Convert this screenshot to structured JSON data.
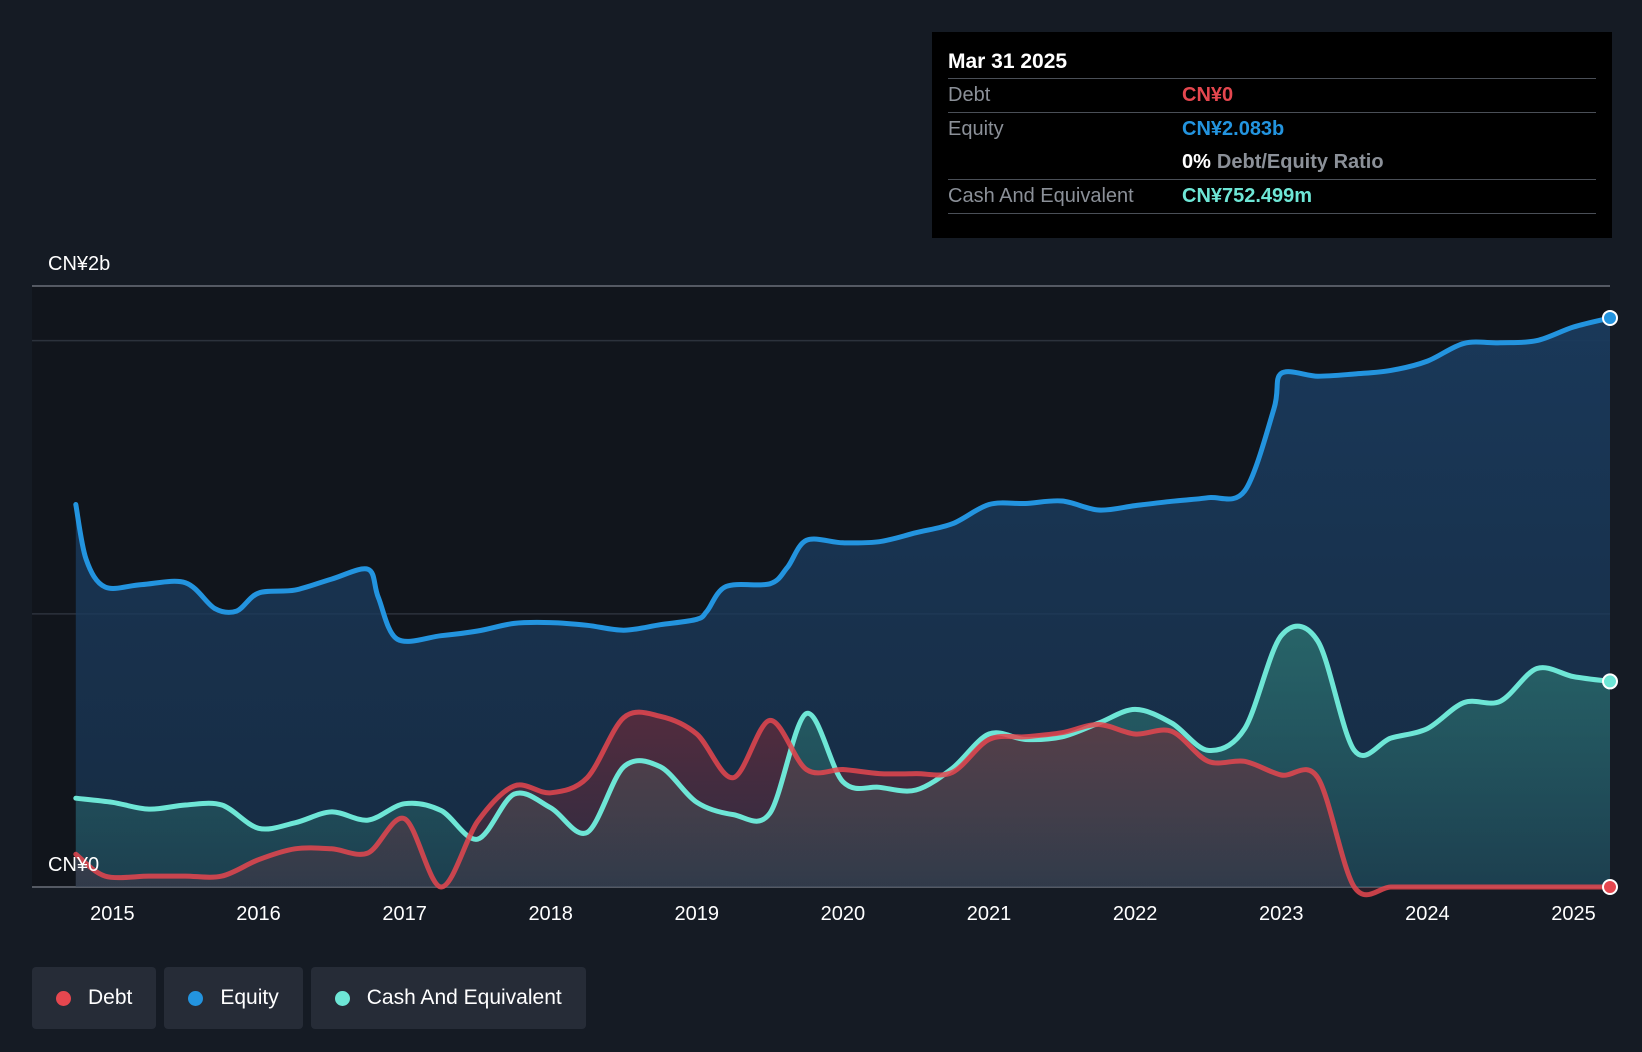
{
  "tooltip": {
    "date": "Mar 31 2025",
    "debt_label": "Debt",
    "debt_value": "CN¥0",
    "equity_label": "Equity",
    "equity_value": "CN¥2.083b",
    "ratio_value": "0%",
    "ratio_label": "Debt/Equity Ratio",
    "cash_label": "Cash And Equivalent",
    "cash_value": "CN¥752.499m"
  },
  "legend": [
    {
      "label": "Debt",
      "color": "#e5474f"
    },
    {
      "label": "Equity",
      "color": "#2394df"
    },
    {
      "label": "Cash And Equivalent",
      "color": "#6ee6d6"
    }
  ],
  "colors": {
    "debt": "#e5474f",
    "equity": "#2394df",
    "cash": "#6ee6d6",
    "background": "#151b24"
  },
  "chart_data": {
    "type": "area",
    "title": "",
    "xlabel": "",
    "ylabel": "",
    "y_unit": "CN¥ billion",
    "xlim": [
      2014.45,
      2025.25
    ],
    "ylim": [
      0,
      2.2
    ],
    "y_tick_labels": [
      {
        "value": 2.2,
        "label": "CN¥2b"
      },
      {
        "value": 0,
        "label": "CN¥0"
      }
    ],
    "x_ticks": [
      2015,
      2016,
      2017,
      2018,
      2019,
      2020,
      2021,
      2022,
      2023,
      2024,
      2025
    ],
    "grid": true,
    "legend_position": "bottom-left",
    "series": [
      {
        "name": "Equity",
        "x": [
          2014.75,
          2014.82,
          2014.95,
          2015.2,
          2015.5,
          2015.7,
          2015.85,
          2016.0,
          2016.25,
          2016.5,
          2016.75,
          2016.82,
          2016.95,
          2017.25,
          2017.5,
          2017.75,
          2018.0,
          2018.25,
          2018.5,
          2018.75,
          2019.0,
          2019.07,
          2019.2,
          2019.5,
          2019.62,
          2019.75,
          2020.0,
          2020.25,
          2020.5,
          2020.75,
          2021.0,
          2021.25,
          2021.5,
          2021.75,
          2022.0,
          2022.25,
          2022.5,
          2022.75,
          2022.95,
          2023.0,
          2023.25,
          2023.5,
          2023.75,
          2024.0,
          2024.25,
          2024.5,
          2024.75,
          2025.0,
          2025.25
        ],
        "values": [
          1.4,
          1.2,
          1.098,
          1.107,
          1.114,
          1.02,
          1.01,
          1.076,
          1.087,
          1.127,
          1.163,
          1.06,
          0.907,
          0.92,
          0.937,
          0.965,
          0.968,
          0.958,
          0.94,
          0.96,
          0.98,
          1.01,
          1.1,
          1.11,
          1.17,
          1.269,
          1.26,
          1.264,
          1.297,
          1.33,
          1.4,
          1.404,
          1.413,
          1.38,
          1.396,
          1.412,
          1.425,
          1.45,
          1.75,
          1.88,
          1.87,
          1.878,
          1.891,
          1.925,
          1.99,
          1.992,
          2.0,
          2.05,
          2.083
        ]
      },
      {
        "name": "Cash And Equivalent",
        "x": [
          2014.75,
          2015.0,
          2015.25,
          2015.5,
          2015.75,
          2016.0,
          2016.25,
          2016.5,
          2016.75,
          2017.0,
          2017.25,
          2017.5,
          2017.75,
          2018.0,
          2018.25,
          2018.5,
          2018.75,
          2019.0,
          2019.25,
          2019.5,
          2019.75,
          2020.0,
          2020.25,
          2020.5,
          2020.75,
          2021.0,
          2021.25,
          2021.5,
          2021.75,
          2022.0,
          2022.25,
          2022.5,
          2022.75,
          2023.0,
          2023.25,
          2023.5,
          2023.75,
          2024.0,
          2024.25,
          2024.5,
          2024.75,
          2025.0,
          2025.25
        ],
        "values": [
          0.325,
          0.31,
          0.285,
          0.3,
          0.3,
          0.215,
          0.235,
          0.275,
          0.245,
          0.305,
          0.28,
          0.175,
          0.34,
          0.29,
          0.2,
          0.44,
          0.44,
          0.31,
          0.265,
          0.27,
          0.635,
          0.385,
          0.365,
          0.355,
          0.435,
          0.56,
          0.54,
          0.55,
          0.6,
          0.65,
          0.6,
          0.5,
          0.58,
          0.92,
          0.9,
          0.5,
          0.545,
          0.58,
          0.675,
          0.68,
          0.8,
          0.77,
          0.7525
        ]
      },
      {
        "name": "Debt",
        "x": [
          2014.75,
          2014.95,
          2015.25,
          2015.5,
          2015.75,
          2016.0,
          2016.25,
          2016.5,
          2016.75,
          2017.0,
          2017.25,
          2017.5,
          2017.75,
          2018.0,
          2018.25,
          2018.5,
          2018.75,
          2019.0,
          2019.25,
          2019.5,
          2019.75,
          2020.0,
          2020.25,
          2020.5,
          2020.75,
          2021.0,
          2021.25,
          2021.5,
          2021.75,
          2022.0,
          2022.25,
          2022.5,
          2022.75,
          2023.0,
          2023.25,
          2023.5,
          2023.75,
          2024.0,
          2024.25,
          2024.5,
          2024.75,
          2025.0,
          2025.25
        ],
        "values": [
          0.12,
          0.04,
          0.04,
          0.04,
          0.04,
          0.1,
          0.14,
          0.14,
          0.125,
          0.25,
          0.0,
          0.24,
          0.37,
          0.345,
          0.4,
          0.62,
          0.625,
          0.56,
          0.4,
          0.61,
          0.43,
          0.43,
          0.415,
          0.415,
          0.42,
          0.54,
          0.55,
          0.565,
          0.595,
          0.56,
          0.57,
          0.46,
          0.46,
          0.41,
          0.4,
          0.0,
          0.0,
          0.0,
          0.0,
          0.0,
          0.0,
          0.0,
          0.0
        ]
      }
    ]
  }
}
